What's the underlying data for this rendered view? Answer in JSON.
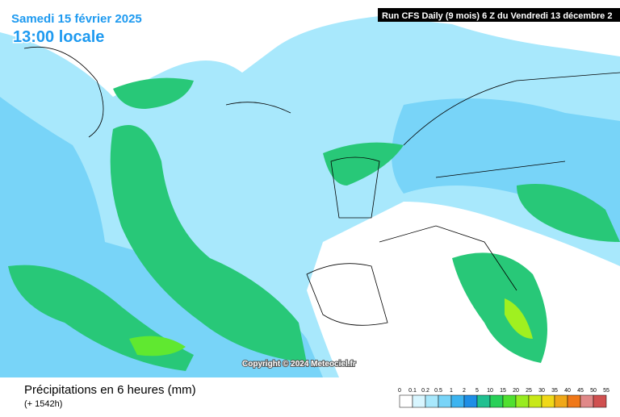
{
  "header": {
    "date": "Samedi 15 février 2025",
    "time": "13:00 locale",
    "run": "Run CFS Daily (9 mois) 6 Z du Vendredi 13 décembre 2"
  },
  "copyright": "Copyright © 2024 Meteociel.fr",
  "footer": {
    "title": "Précipitations en 6 heures (mm)",
    "lead": "(+ 1542h)"
  },
  "scale": {
    "labels": [
      "0",
      "0.1",
      "0.2",
      "0.5",
      "1",
      "2",
      "5",
      "10",
      "15",
      "20",
      "25",
      "30",
      "35",
      "40",
      "45",
      "50",
      "55"
    ],
    "colors": [
      "#ffffff",
      "#d8f6ff",
      "#a8e8fc",
      "#78d4f8",
      "#3cb4f0",
      "#1e8ee6",
      "#20c090",
      "#28d058",
      "#50e030",
      "#98ec20",
      "#c8e818",
      "#f0d818",
      "#f0a818",
      "#f07818",
      "#e08888",
      "#d05050"
    ]
  }
}
